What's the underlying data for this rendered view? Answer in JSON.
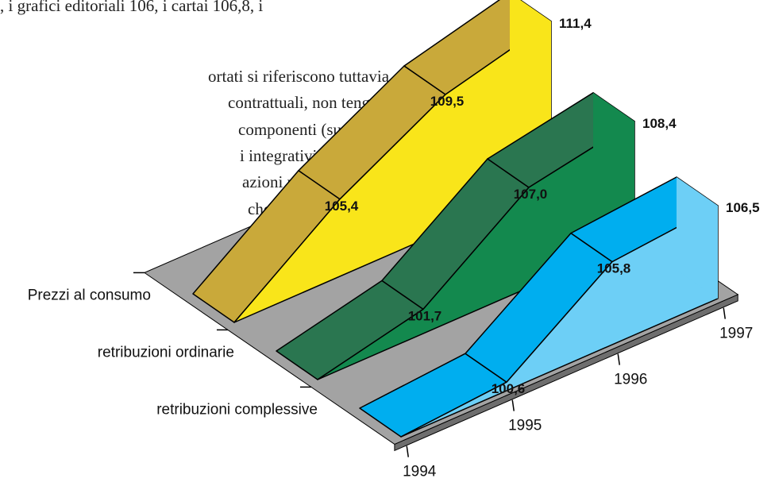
{
  "document_text": [
    ", i grafici editoriali 106, i cartai 106,8, i",
    "ortati si riferiscono tuttavia alle",
    "contrattuali, non tengono cioè",
    "componenti (superminimi",
    "i integrativi aziendali,",
    "azioni per lavoro not-",
    "che in-"
  ],
  "chart_data": {
    "type": "ribbon3d",
    "categories": [
      "1994",
      "1995",
      "1996",
      "1997"
    ],
    "ylim": [
      100,
      112
    ],
    "series": [
      {
        "name": "Prezzi al consumo",
        "color": "#f9e51a",
        "top_color": "#c9a93a",
        "values": [
          100,
          105.4,
          109.5,
          111.4
        ],
        "value_labels": [
          null,
          "105,4",
          "109,5",
          "111,4"
        ]
      },
      {
        "name": "retribuzioni ordinarie",
        "color": "#13894e",
        "top_color": "#2a7650",
        "values": [
          100,
          101.7,
          107.0,
          108.4
        ],
        "value_labels": [
          null,
          "101,7",
          "107,0",
          "108,4"
        ]
      },
      {
        "name": "retribuzioni complessive",
        "color": "#6dcff6",
        "top_color": "#00aeef",
        "values": [
          100,
          100.6,
          105.8,
          106.5
        ],
        "value_labels": [
          null,
          "100,6",
          "105,8",
          "106,5"
        ]
      }
    ]
  }
}
